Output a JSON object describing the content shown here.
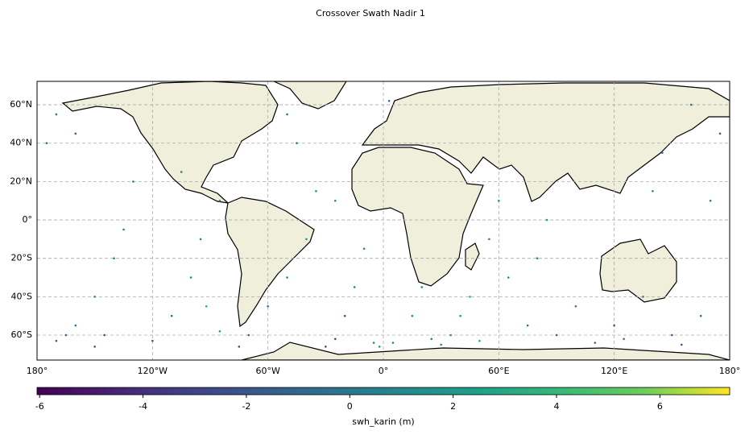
{
  "chart_data": {
    "type": "scatter",
    "title": "Crossover Swath Nadir 1",
    "xlim": [
      -180,
      180
    ],
    "ylim": [
      -73,
      72.2
    ],
    "xticks": [
      {
        "value": -180,
        "label": "180°"
      },
      {
        "value": -120,
        "label": "120°W"
      },
      {
        "value": -60,
        "label": "60°W"
      },
      {
        "value": 0,
        "label": "0°"
      },
      {
        "value": 60,
        "label": "60°E"
      },
      {
        "value": 120,
        "label": "120°E"
      },
      {
        "value": 180,
        "label": "180°"
      }
    ],
    "yticks": [
      {
        "value": -60,
        "label": "60°S"
      },
      {
        "value": -40,
        "label": "40°S"
      },
      {
        "value": -20,
        "label": "20°S"
      },
      {
        "value": 0,
        "label": "0°"
      },
      {
        "value": 20,
        "label": "20°N"
      },
      {
        "value": 40,
        "label": "40°N"
      },
      {
        "value": 60,
        "label": "60°N"
      }
    ],
    "grid": true,
    "cmap": "viridis",
    "clim": [
      -6.05,
      7.35
    ],
    "colorbar_label": "swh_karin (m)",
    "colorbar_ticks": [
      -6,
      -4,
      -2,
      0,
      2,
      4,
      6
    ],
    "x": [
      -170,
      -165,
      -160,
      -150,
      -140,
      -135,
      -130,
      -160,
      -170,
      -175,
      -150,
      -145,
      -120,
      -110,
      -100,
      -95,
      -85,
      -105,
      -92,
      -85,
      -75,
      -70,
      -60,
      -50,
      -40,
      -35,
      -45,
      -50,
      -25,
      -20,
      -15,
      -10,
      -25,
      -5,
      5,
      15,
      20,
      25,
      30,
      40,
      45,
      50,
      55,
      60,
      65,
      75,
      80,
      85,
      90,
      100,
      110,
      120,
      125,
      135,
      140,
      145,
      150,
      155,
      165,
      170,
      175,
      160,
      -30,
      35,
      3,
      -2
    ],
    "y": [
      -63,
      -60,
      -55,
      -40,
      -20,
      -5,
      20,
      45,
      55,
      40,
      -66,
      -60,
      -63,
      -50,
      -30,
      -10,
      10,
      25,
      -45,
      -58,
      -66,
      -60,
      -45,
      -30,
      -10,
      15,
      40,
      55,
      -62,
      -50,
      -35,
      -15,
      10,
      -64,
      -64,
      -50,
      -35,
      -62,
      -65,
      -50,
      -40,
      -63,
      -10,
      10,
      -30,
      -55,
      -20,
      0,
      -60,
      -45,
      -64,
      -55,
      -62,
      -40,
      15,
      35,
      -60,
      -65,
      -50,
      10,
      45,
      60,
      -66,
      -60,
      62,
      -66
    ],
    "values": [
      -1.5,
      -1,
      0.5,
      1,
      0.5,
      1,
      0.5,
      -1,
      0,
      0.5,
      -1.5,
      -2,
      -2,
      -0.5,
      1,
      0.5,
      1,
      0.5,
      3,
      2,
      -2,
      -1.5,
      0,
      0.5,
      1,
      1.5,
      0,
      -0.5,
      -3,
      -2,
      0.5,
      1,
      1.5,
      1,
      0.5,
      2,
      1.5,
      0.5,
      1,
      2,
      3,
      2.5,
      1,
      1.5,
      1,
      0.5,
      1,
      1.5,
      -1,
      -0.5,
      -1.5,
      -1,
      -0.5,
      0.5,
      0.5,
      -0.5,
      -1.5,
      -2,
      0,
      0.5,
      -1,
      0,
      -2,
      1.5,
      -1,
      2
    ]
  }
}
